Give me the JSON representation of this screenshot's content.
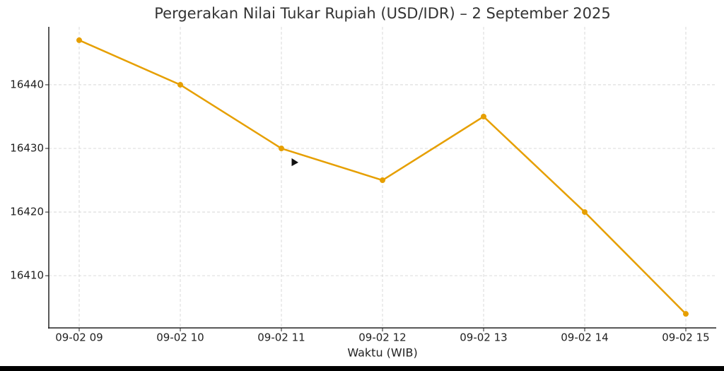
{
  "chart_data": {
    "type": "line",
    "title": "Pergerakan Nilai Tukar Rupiah (USD/IDR) – 2 September 2025",
    "x_label": "Waktu (WIB)",
    "categories": [
      "09-02 09",
      "09-02 10",
      "09-02 11",
      "09-02 12",
      "09-02 13",
      "09-02 14",
      "09-02 15"
    ],
    "series": [
      {
        "name": "USD/IDR",
        "color": "#e69f00",
        "values": [
          16447,
          16440,
          16430,
          16425,
          16435,
          16420,
          16404
        ]
      }
    ],
    "ylim": [
      16401.8,
      16449.1
    ],
    "yticks": [
      16410,
      16420,
      16430,
      16440
    ],
    "grid": true
  }
}
